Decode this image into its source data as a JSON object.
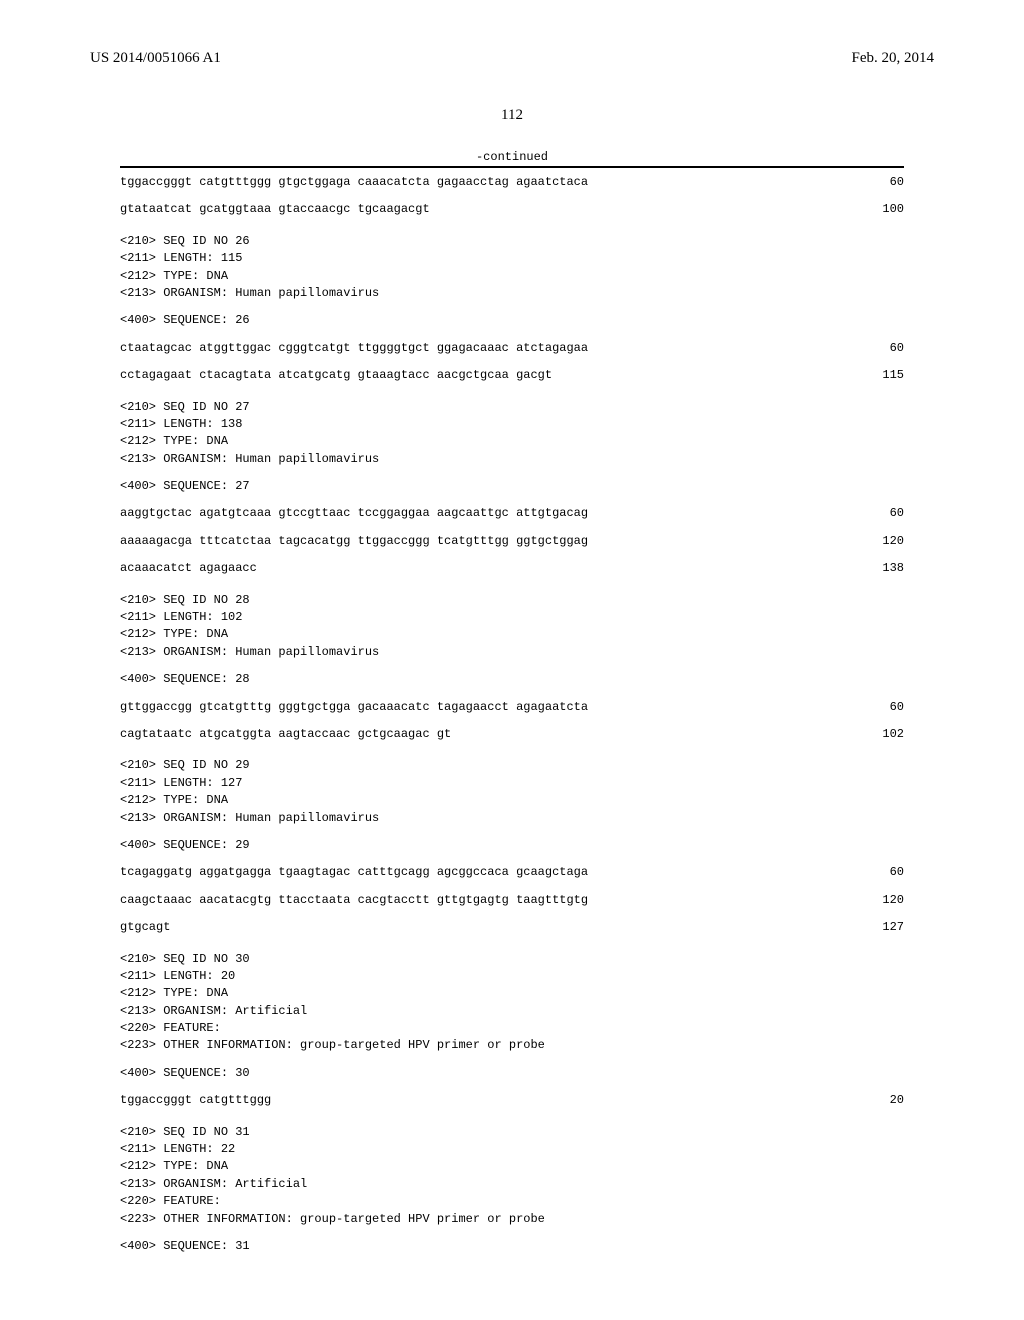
{
  "header": {
    "pubnum": "US 2014/0051066 A1",
    "pubdate": "Feb. 20, 2014"
  },
  "page_number": "112",
  "continued_label": "-continued",
  "sequences": [
    {
      "lines": [
        {
          "text": "tggaccgggt catgtttggg gtgctggaga caaacatcta gagaacctag agaatctaca",
          "pos": "60"
        },
        {
          "text": "gtataatcat gcatggtaaa gtaccaacgc tgcaagacgt",
          "pos": "100"
        }
      ]
    },
    {
      "meta": [
        "<210> SEQ ID NO 26",
        "<211> LENGTH: 115",
        "<212> TYPE: DNA",
        "<213> ORGANISM: Human papillomavirus"
      ],
      "seq_header": "<400> SEQUENCE: 26",
      "lines": [
        {
          "text": "ctaatagcac atggttggac cgggtcatgt ttggggtgct ggagacaaac atctagagaa",
          "pos": "60"
        },
        {
          "text": "cctagagaat ctacagtata atcatgcatg gtaaagtacc aacgctgcaa gacgt",
          "pos": "115"
        }
      ]
    },
    {
      "meta": [
        "<210> SEQ ID NO 27",
        "<211> LENGTH: 138",
        "<212> TYPE: DNA",
        "<213> ORGANISM: Human papillomavirus"
      ],
      "seq_header": "<400> SEQUENCE: 27",
      "lines": [
        {
          "text": "aaggtgctac agatgtcaaa gtccgttaac tccggaggaa aagcaattgc attgtgacag",
          "pos": "60"
        },
        {
          "text": "aaaaagacga tttcatctaa tagcacatgg ttggaccggg tcatgtttgg ggtgctggag",
          "pos": "120"
        },
        {
          "text": "acaaacatct agagaacc",
          "pos": "138"
        }
      ]
    },
    {
      "meta": [
        "<210> SEQ ID NO 28",
        "<211> LENGTH: 102",
        "<212> TYPE: DNA",
        "<213> ORGANISM: Human papillomavirus"
      ],
      "seq_header": "<400> SEQUENCE: 28",
      "lines": [
        {
          "text": "gttggaccgg gtcatgtttg gggtgctgga gacaaacatc tagagaacct agagaatcta",
          "pos": "60"
        },
        {
          "text": "cagtataatc atgcatggta aagtaccaac gctgcaagac gt",
          "pos": "102"
        }
      ]
    },
    {
      "meta": [
        "<210> SEQ ID NO 29",
        "<211> LENGTH: 127",
        "<212> TYPE: DNA",
        "<213> ORGANISM: Human papillomavirus"
      ],
      "seq_header": "<400> SEQUENCE: 29",
      "lines": [
        {
          "text": "tcagaggatg aggatgagga tgaagtagac catttgcagg agcggccaca gcaagctaga",
          "pos": "60"
        },
        {
          "text": "caagctaaac aacatacgtg ttacctaata cacgtacctt gttgtgagtg taagtttgtg",
          "pos": "120"
        },
        {
          "text": "gtgcagt",
          "pos": "127"
        }
      ]
    },
    {
      "meta": [
        "<210> SEQ ID NO 30",
        "<211> LENGTH: 20",
        "<212> TYPE: DNA",
        "<213> ORGANISM: Artificial",
        "<220> FEATURE:",
        "<223> OTHER INFORMATION: group-targeted HPV primer or probe"
      ],
      "seq_header": "<400> SEQUENCE: 30",
      "lines": [
        {
          "text": "tggaccgggt catgtttggg",
          "pos": "20"
        }
      ]
    },
    {
      "meta": [
        "<210> SEQ ID NO 31",
        "<211> LENGTH: 22",
        "<212> TYPE: DNA",
        "<213> ORGANISM: Artificial",
        "<220> FEATURE:",
        "<223> OTHER INFORMATION: group-targeted HPV primer or probe"
      ],
      "seq_header": "<400> SEQUENCE: 31",
      "lines": []
    }
  ],
  "seq_text_width_ch": 66
}
